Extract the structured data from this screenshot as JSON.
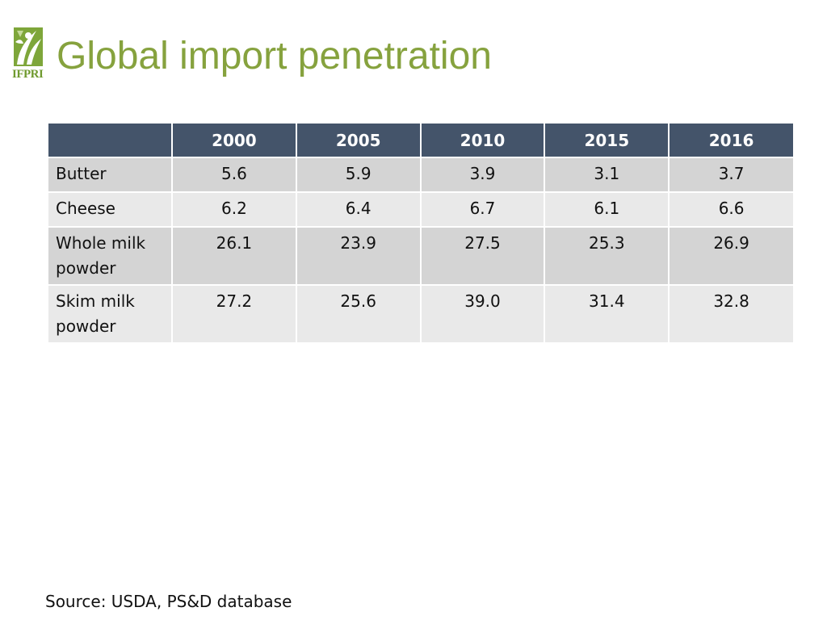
{
  "logo": {
    "text": "IFPRI",
    "icon": "ifpri-leaf-logo-icon",
    "color": "#6f9a2f"
  },
  "title": "Global import penetration",
  "colors": {
    "title": "#86a23e",
    "header_bg": "#44546a",
    "row_dark": "#d4d4d4",
    "row_light": "#e9e9e9"
  },
  "table": {
    "corner": "",
    "headers": [
      "2000",
      "2005",
      "2010",
      "2015",
      "2016"
    ],
    "rows": [
      {
        "label": "Butter",
        "values": [
          "5.6",
          "5.9",
          "3.9",
          "3.1",
          "3.7"
        ]
      },
      {
        "label": "Cheese",
        "values": [
          "6.2",
          "6.4",
          "6.7",
          "6.1",
          "6.6"
        ]
      },
      {
        "label": "Whole milk powder",
        "values": [
          "26.1",
          "23.9",
          "27.5",
          "25.3",
          "26.9"
        ]
      },
      {
        "label": "Skim milk powder",
        "values": [
          "27.2",
          "25.6",
          "39.0",
          "31.4",
          "32.8"
        ]
      }
    ]
  },
  "source": "Source: USDA, PS&D database"
}
